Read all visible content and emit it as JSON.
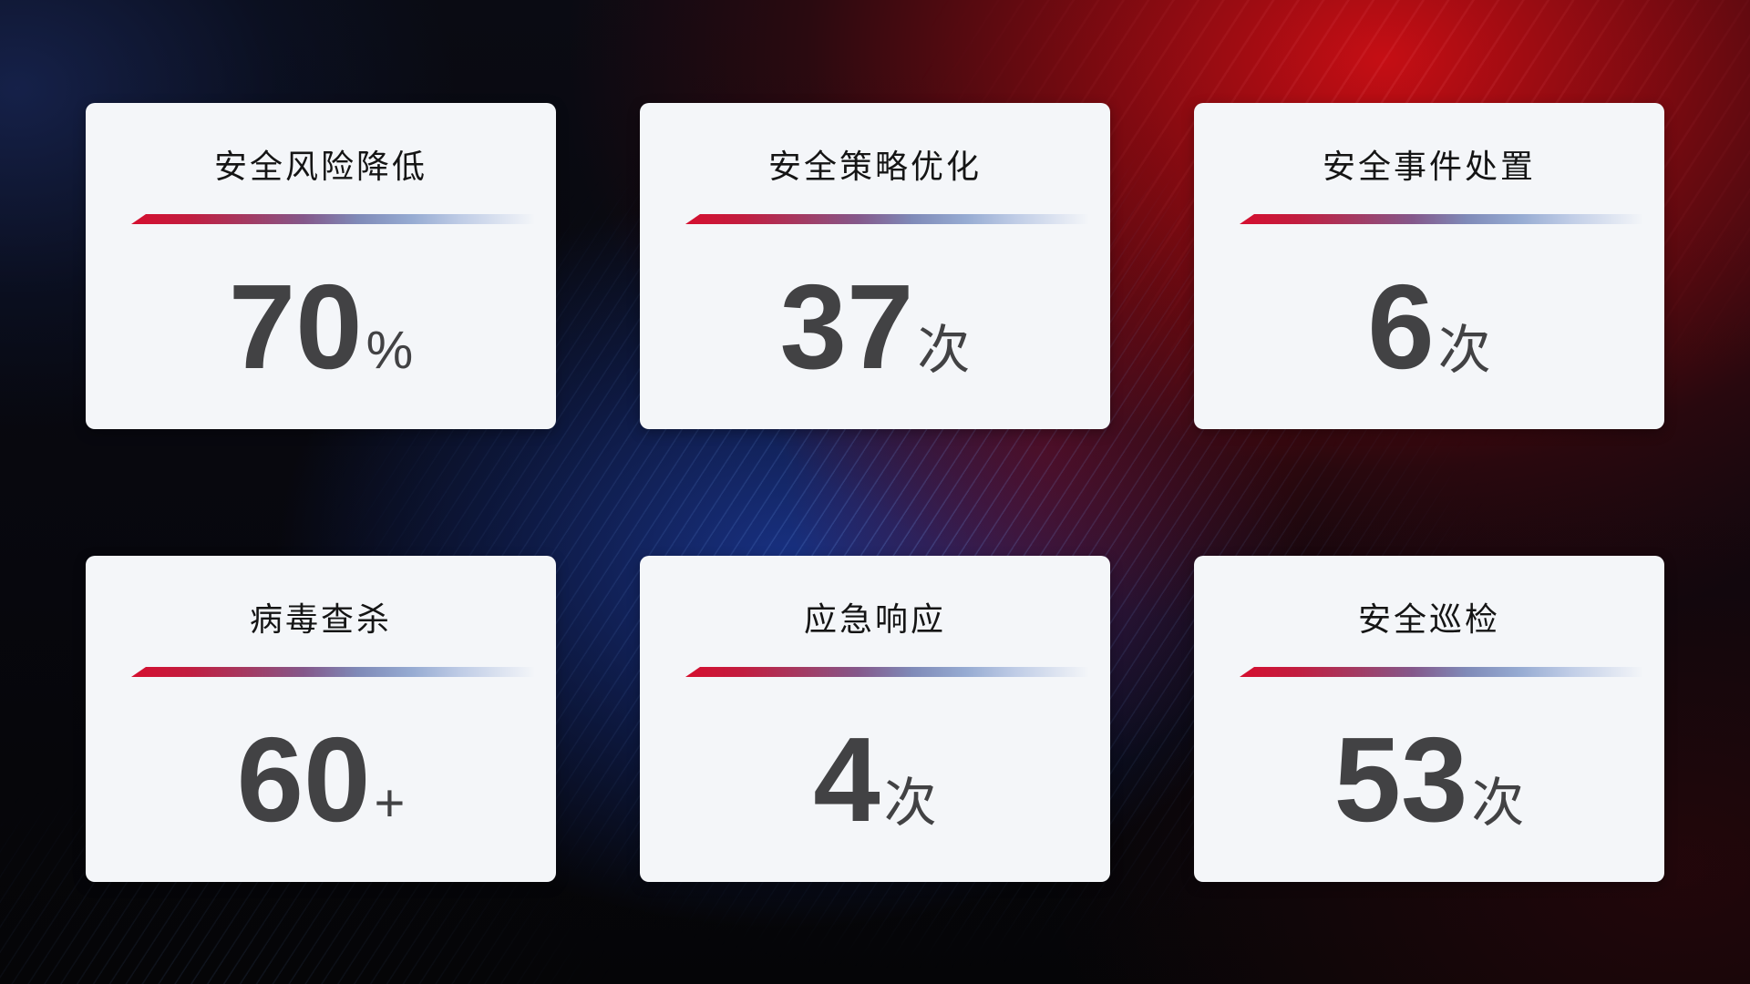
{
  "theme": {
    "card_background": "#f4f6f9",
    "title_color": "#151515",
    "number_color": "#424244",
    "divider_gradient_start": "#d50f2f",
    "divider_gradient_mid": "#84588b",
    "divider_gradient_end": "#bfcce6",
    "background_red": "#cd0e14",
    "background_blue": "#1a358e"
  },
  "cards": [
    {
      "title": "安全风险降低",
      "value": "70",
      "unit": "%"
    },
    {
      "title": "安全策略优化",
      "value": "37",
      "unit": "次"
    },
    {
      "title": "安全事件处置",
      "value": "6",
      "unit": "次"
    },
    {
      "title": "病毒查杀",
      "value": "60",
      "unit": "+"
    },
    {
      "title": "应急响应",
      "value": "4",
      "unit": "次"
    },
    {
      "title": "安全巡检",
      "value": "53",
      "unit": "次"
    }
  ]
}
